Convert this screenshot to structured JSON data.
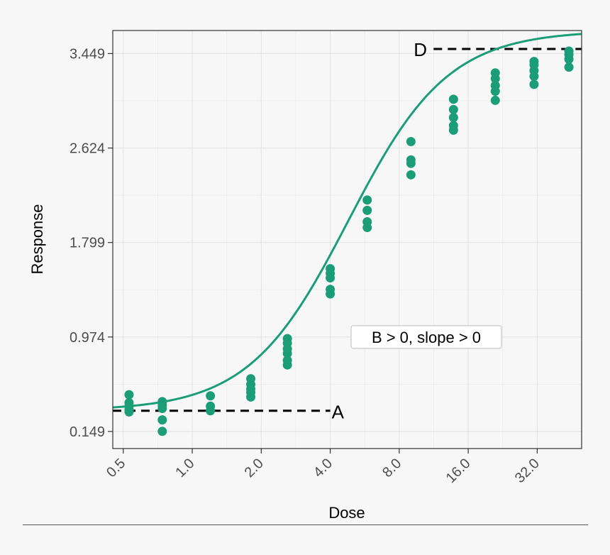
{
  "chart_data": {
    "type": "scatter",
    "xlabel": "Dose",
    "ylabel": "Response",
    "x_scale": "log2",
    "xlim": [
      0.45,
      50
    ],
    "ylim": [
      0.0,
      3.65
    ],
    "x_ticks": [
      {
        "value": 0.5,
        "label": "0.5"
      },
      {
        "value": 1.0,
        "label": "1.0"
      },
      {
        "value": 2.0,
        "label": "2.0"
      },
      {
        "value": 4.0,
        "label": "4.0"
      },
      {
        "value": 8.0,
        "label": "8.0"
      },
      {
        "value": 16.0,
        "label": "16.0"
      },
      {
        "value": 32.0,
        "label": "32.0"
      }
    ],
    "y_ticks": [
      {
        "value": 0.149,
        "label": "0.149"
      },
      {
        "value": 0.974,
        "label": "0.974"
      },
      {
        "value": 1.799,
        "label": "1.799"
      },
      {
        "value": 2.624,
        "label": "2.624"
      },
      {
        "value": 3.449,
        "label": "3.449"
      }
    ],
    "grid": true,
    "colors": {
      "points": "#1b9e77",
      "curve": "#1b9e77",
      "reference": "#000000",
      "background": "#f7f7f7"
    },
    "curve": {
      "model": "4PL",
      "A": 0.33,
      "D": 3.65,
      "EC50": 4.8,
      "B": 2.0,
      "x_range": [
        0.45,
        50
      ]
    },
    "points": [
      {
        "x": 0.53,
        "y": 0.47
      },
      {
        "x": 0.53,
        "y": 0.4
      },
      {
        "x": 0.53,
        "y": 0.37
      },
      {
        "x": 0.53,
        "y": 0.34
      },
      {
        "x": 0.53,
        "y": 0.32
      },
      {
        "x": 0.74,
        "y": 0.41
      },
      {
        "x": 0.74,
        "y": 0.38
      },
      {
        "x": 0.74,
        "y": 0.35
      },
      {
        "x": 0.74,
        "y": 0.25
      },
      {
        "x": 0.74,
        "y": 0.15
      },
      {
        "x": 1.2,
        "y": 0.46
      },
      {
        "x": 1.2,
        "y": 0.37
      },
      {
        "x": 1.2,
        "y": 0.33
      },
      {
        "x": 1.8,
        "y": 0.61
      },
      {
        "x": 1.8,
        "y": 0.56
      },
      {
        "x": 1.8,
        "y": 0.52
      },
      {
        "x": 1.8,
        "y": 0.49
      },
      {
        "x": 1.8,
        "y": 0.45
      },
      {
        "x": 2.6,
        "y": 0.96
      },
      {
        "x": 2.6,
        "y": 0.92
      },
      {
        "x": 2.6,
        "y": 0.87
      },
      {
        "x": 2.6,
        "y": 0.83
      },
      {
        "x": 2.6,
        "y": 0.77
      },
      {
        "x": 2.6,
        "y": 0.73
      },
      {
        "x": 4.0,
        "y": 1.57
      },
      {
        "x": 4.0,
        "y": 1.53
      },
      {
        "x": 4.0,
        "y": 1.49
      },
      {
        "x": 4.0,
        "y": 1.39
      },
      {
        "x": 4.0,
        "y": 1.35
      },
      {
        "x": 5.8,
        "y": 2.17
      },
      {
        "x": 5.8,
        "y": 2.08
      },
      {
        "x": 5.8,
        "y": 1.98
      },
      {
        "x": 5.8,
        "y": 1.93
      },
      {
        "x": 9.0,
        "y": 2.68
      },
      {
        "x": 9.0,
        "y": 2.52
      },
      {
        "x": 9.0,
        "y": 2.49
      },
      {
        "x": 9.0,
        "y": 2.39
      },
      {
        "x": 13.8,
        "y": 3.05
      },
      {
        "x": 13.8,
        "y": 2.96
      },
      {
        "x": 13.8,
        "y": 2.89
      },
      {
        "x": 13.8,
        "y": 2.82
      },
      {
        "x": 13.8,
        "y": 2.78
      },
      {
        "x": 21.0,
        "y": 3.28
      },
      {
        "x": 21.0,
        "y": 3.23
      },
      {
        "x": 21.0,
        "y": 3.17
      },
      {
        "x": 21.0,
        "y": 3.12
      },
      {
        "x": 21.0,
        "y": 3.04
      },
      {
        "x": 31.0,
        "y": 3.38
      },
      {
        "x": 31.0,
        "y": 3.35
      },
      {
        "x": 31.0,
        "y": 3.3
      },
      {
        "x": 31.0,
        "y": 3.25
      },
      {
        "x": 31.0,
        "y": 3.18
      },
      {
        "x": 44.0,
        "y": 3.47
      },
      {
        "x": 44.0,
        "y": 3.44
      },
      {
        "x": 44.0,
        "y": 3.4
      },
      {
        "x": 44.0,
        "y": 3.33
      }
    ],
    "annotations": {
      "A_line": {
        "y": 0.33,
        "x_from": 0.45,
        "x_to": 4.0,
        "label": "A"
      },
      "D_line": {
        "y": 3.65,
        "x_from": 11.3,
        "x_to": 50,
        "label": "D"
      },
      "box": {
        "x": 10.5,
        "y": 0.974,
        "text": "B > 0, slope > 0"
      }
    }
  }
}
